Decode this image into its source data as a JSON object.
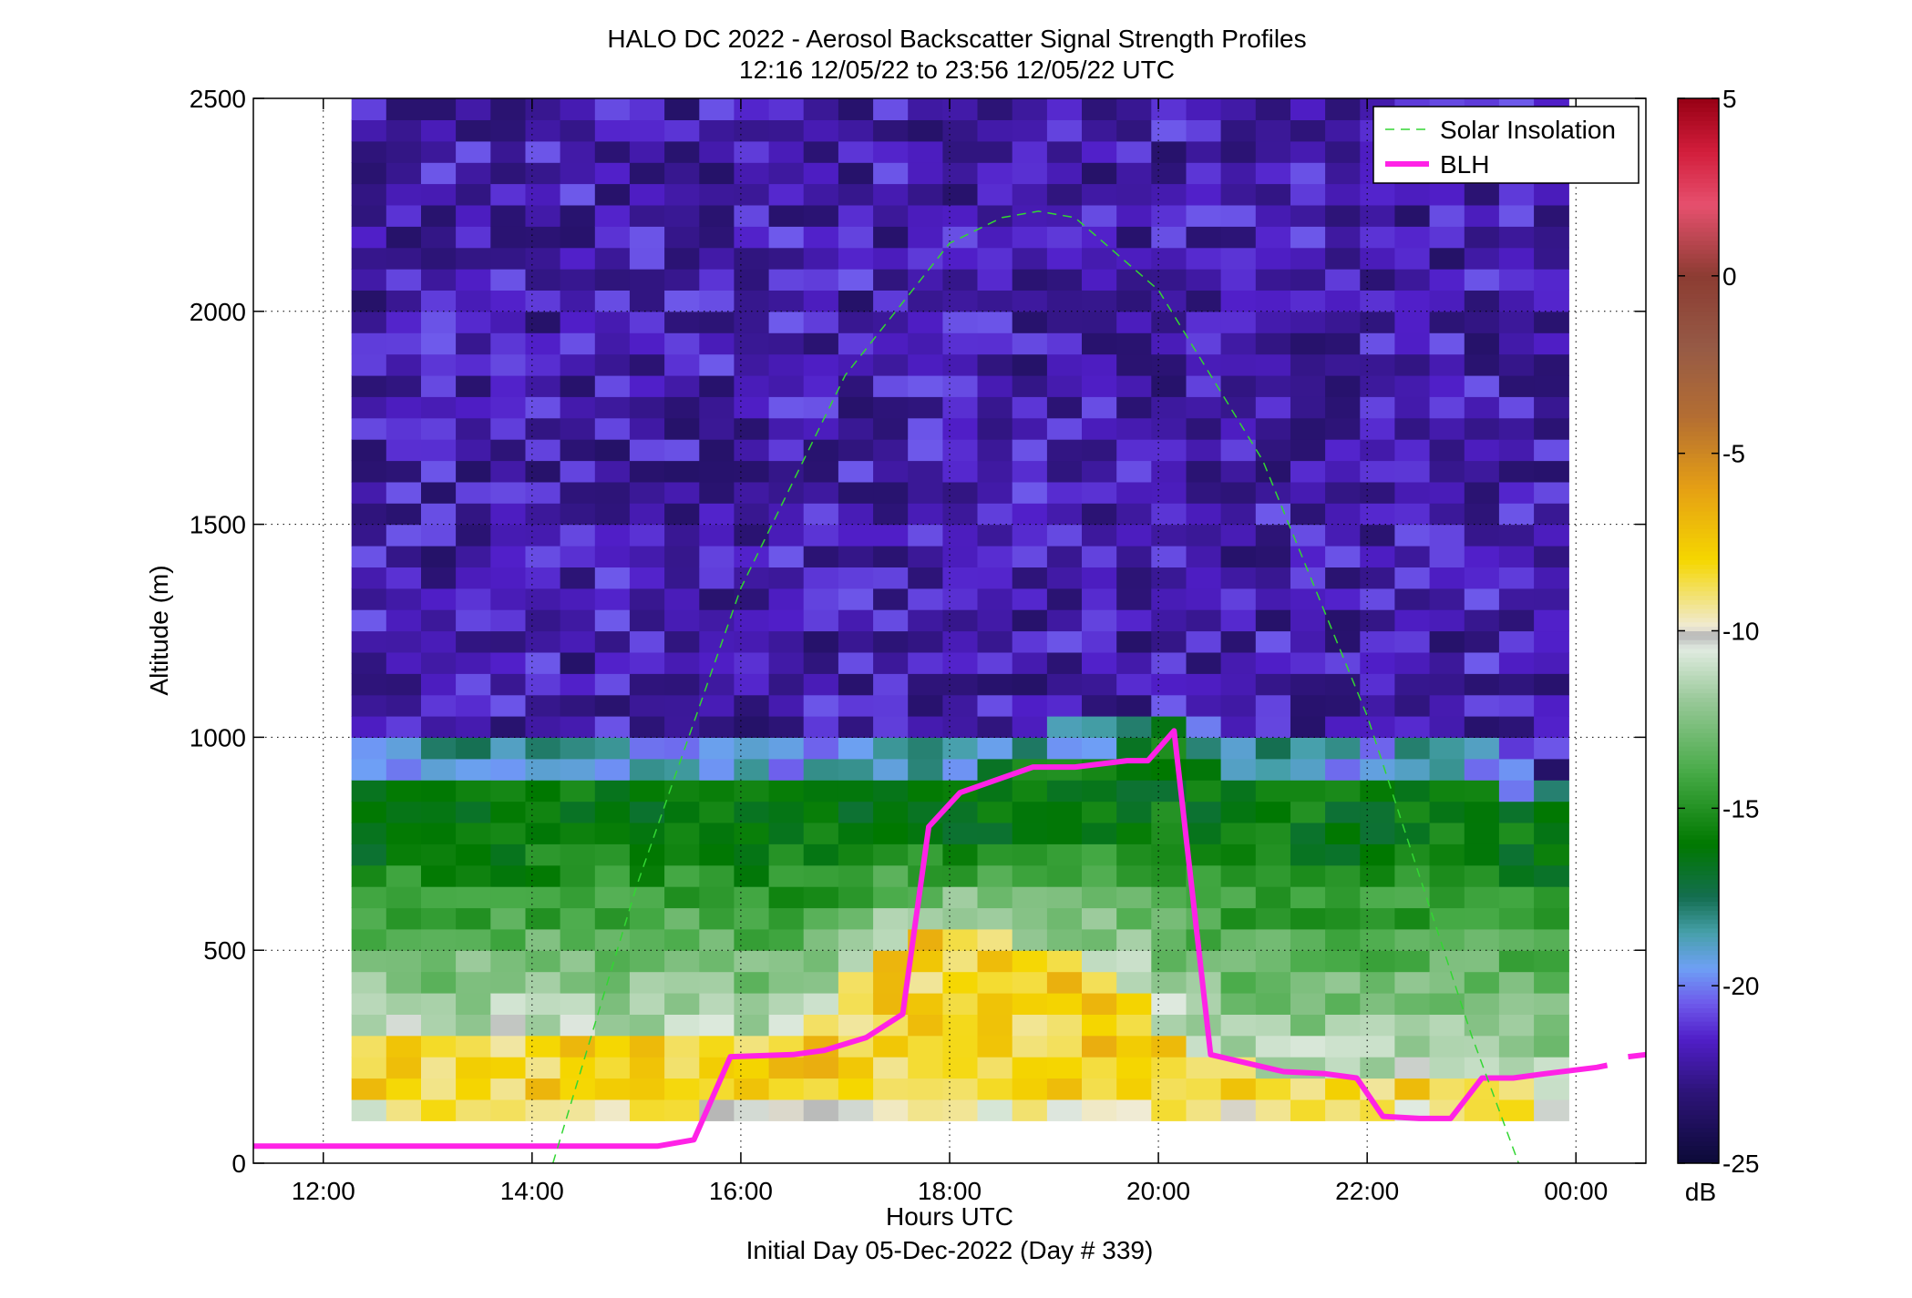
{
  "title": {
    "line1": "HALO DC 2022 - Aerosol Backscatter Signal Strength Profiles",
    "line2": "12:16 12/05/22 to 23:56 12/05/22  UTC"
  },
  "xlabel": "Hours UTC",
  "subtitle": "Initial Day 05-Dec-2022 (Day # 339)",
  "ylabel": "Altitude (m)",
  "colorbar": {
    "unit": "dB",
    "ticks": [
      "5",
      "0",
      "-5",
      "-10",
      "-15",
      "-20",
      "-25"
    ],
    "tick_values": [
      5,
      0,
      -5,
      -10,
      -15,
      -20,
      -25
    ],
    "range": [
      -25,
      5
    ]
  },
  "legend": {
    "items": [
      "Solar Insolation",
      "BLH"
    ]
  },
  "colors": {
    "blh": "#ff22e6",
    "solar": "#33d633"
  },
  "chart_data": {
    "type": "heatmap",
    "title": "HALO DC 2022 - Aerosol Backscatter Signal Strength Profiles",
    "xlabel": "Hours UTC",
    "ylabel": "Altitude (m)",
    "x_ticks": [
      "12:00",
      "14:00",
      "16:00",
      "18:00",
      "20:00",
      "22:00",
      "00:00"
    ],
    "x_tick_hours": [
      12,
      14,
      16,
      18,
      20,
      22,
      24
    ],
    "xlim_hours": [
      11.33,
      24.67
    ],
    "y_ticks": [
      "0",
      "500",
      "1000",
      "1500",
      "2000",
      "2500"
    ],
    "y_tick_values": [
      0,
      500,
      1000,
      1500,
      2000,
      2500
    ],
    "ylim": [
      0,
      2500
    ],
    "grid": true,
    "legend_position": "top-right",
    "heatmap": {
      "time_start_hours": 12.27,
      "time_end_hours": 23.93,
      "altitude_bottom": 100,
      "altitude_top": 2500,
      "value_unit": "dB"
    },
    "series": [
      {
        "name": "BLH",
        "type": "line",
        "x_hours": [
          11.33,
          15.2,
          15.55,
          15.9,
          16.5,
          16.8,
          17.2,
          17.55,
          17.8,
          18.1,
          18.8,
          19.2,
          19.7,
          19.9,
          20.15,
          20.5,
          21.2,
          21.6,
          21.9,
          22.15,
          22.5,
          22.8,
          23.1,
          23.4,
          23.7,
          24.2,
          24.3
        ],
        "y": [
          40,
          40,
          55,
          250,
          255,
          265,
          295,
          350,
          790,
          870,
          930,
          930,
          945,
          945,
          1015,
          255,
          215,
          210,
          200,
          110,
          105,
          105,
          200,
          200,
          210,
          225,
          230
        ]
      },
      {
        "name": "BLH",
        "type": "line",
        "x_hours": [
          24.5,
          24.67
        ],
        "y": [
          250,
          255
        ]
      },
      {
        "name": "Solar Insolation",
        "type": "line-dashed",
        "x_hours": [
          14.2,
          15,
          16,
          17,
          18,
          18.5,
          18.85,
          19.2,
          20,
          21,
          22,
          23,
          23.45
        ],
        "y": [
          0,
          650,
          1350,
          1850,
          2160,
          2220,
          2235,
          2220,
          2050,
          1650,
          1050,
          300,
          0
        ]
      }
    ]
  }
}
